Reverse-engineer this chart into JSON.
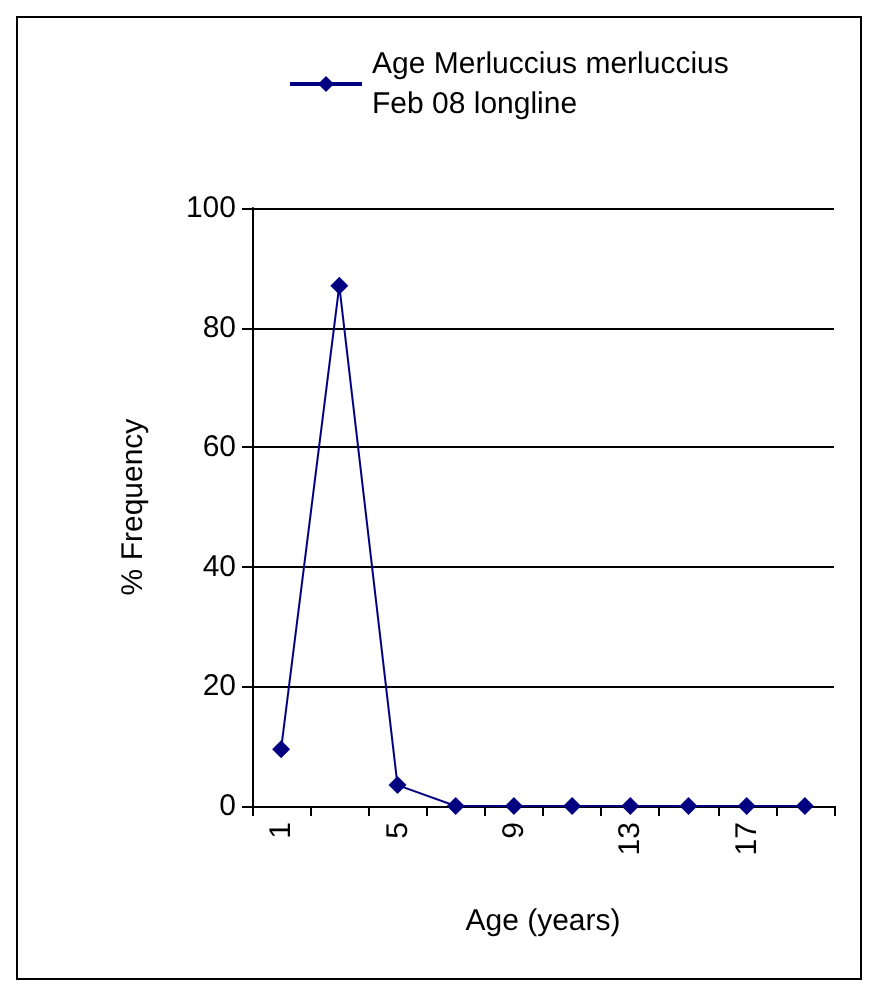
{
  "chart_data": {
    "type": "line",
    "xlabel": "Age (years)",
    "ylabel": "% Frequency",
    "categories": [
      "1",
      null,
      "5",
      null,
      "9",
      null,
      "13",
      null,
      "17",
      null
    ],
    "series": [
      {
        "name": "Age Merluccius merluccius\nFeb 08 longline",
        "color": "#000080",
        "values": [
          9.5,
          87,
          3.5,
          0,
          0,
          0,
          0,
          0,
          0,
          0
        ]
      }
    ],
    "ylim": [
      0,
      100
    ],
    "yticks": [
      0,
      20,
      40,
      60,
      80,
      100
    ],
    "grid": "y",
    "legend": "top",
    "marker": "diamond",
    "line_style": "solid"
  }
}
